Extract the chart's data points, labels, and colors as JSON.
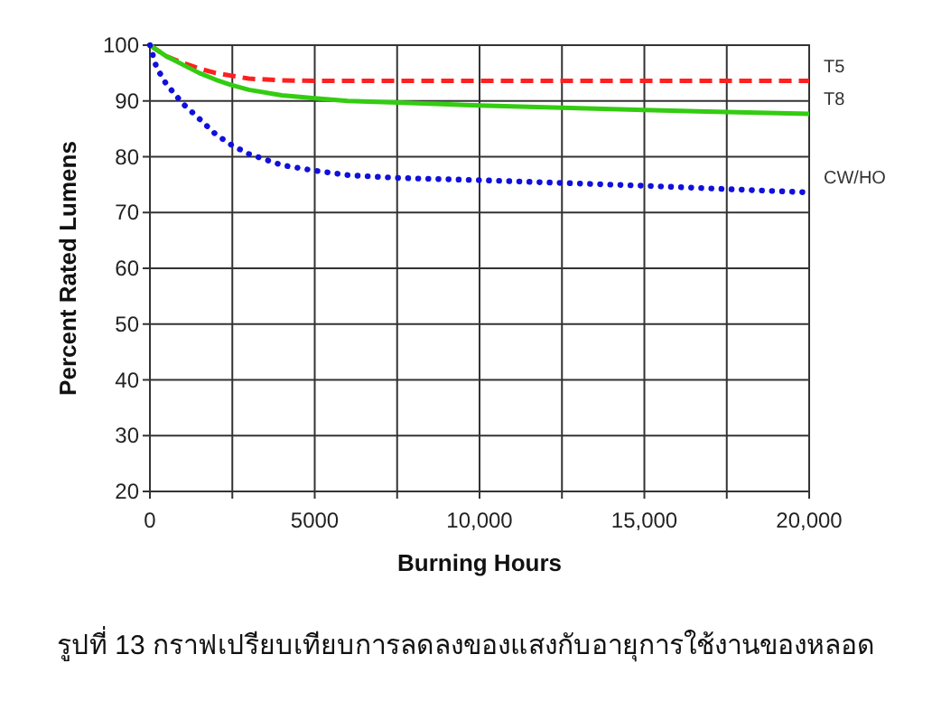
{
  "chart_data": {
    "type": "line",
    "xlabel": "Burning Hours",
    "ylabel": "Percent Rated Lumens",
    "annotations": [
      "รูปที่ 13 กราฟเปรียบเทียบการลดลงของแสงกับอายุการใช้งานของหลอด"
    ],
    "xlim": [
      0,
      20000
    ],
    "ylim": [
      20,
      100
    ],
    "xticks": [
      0,
      {
        "value": 2500,
        "label": null
      },
      {
        "value": 5000,
        "label": "5000"
      },
      {
        "value": 7500,
        "label": null
      },
      {
        "value": 10000,
        "label": "10,000"
      },
      {
        "value": 12500,
        "label": null
      },
      {
        "value": 15000,
        "label": "15,000"
      },
      {
        "value": 17500,
        "label": null
      },
      {
        "value": 20000,
        "label": "20,000"
      }
    ],
    "yticks": [
      20,
      30,
      40,
      50,
      60,
      70,
      80,
      90,
      100
    ],
    "grid": true,
    "series": [
      {
        "name": "T5",
        "color": "#ff2020",
        "line_style": "dashed",
        "x": [
          0,
          500,
          1000,
          1500,
          2000,
          2500,
          3000,
          4000,
          5000,
          10000,
          15000,
          20000
        ],
        "values": [
          100,
          98,
          96.8,
          95.8,
          95,
          94.5,
          94,
          93.7,
          93.6,
          93.6,
          93.6,
          93.6
        ]
      },
      {
        "name": "T8",
        "color": "#33cc11",
        "line_style": "solid",
        "x": [
          0,
          500,
          1000,
          1500,
          2000,
          2500,
          3000,
          4000,
          5000,
          6000,
          7500,
          10000,
          12500,
          15000,
          17500,
          20000
        ],
        "values": [
          100,
          98,
          96.5,
          95,
          93.8,
          92.8,
          92,
          91,
          90.5,
          90,
          89.7,
          89.2,
          88.8,
          88.4,
          88,
          87.7
        ]
      },
      {
        "name": "CW/HO",
        "color": "#1010dd",
        "line_style": "dotted",
        "x": [
          0,
          200,
          500,
          1000,
          1500,
          2000,
          2500,
          3000,
          3500,
          4000,
          5000,
          6000,
          7500,
          10000,
          12500,
          15000,
          17500,
          20000
        ],
        "values": [
          100,
          96,
          93,
          89.5,
          86.8,
          84,
          82,
          80.5,
          79.5,
          78.5,
          77.5,
          76.7,
          76.2,
          75.8,
          75.3,
          74.8,
          74.2,
          73.6
        ]
      }
    ]
  }
}
